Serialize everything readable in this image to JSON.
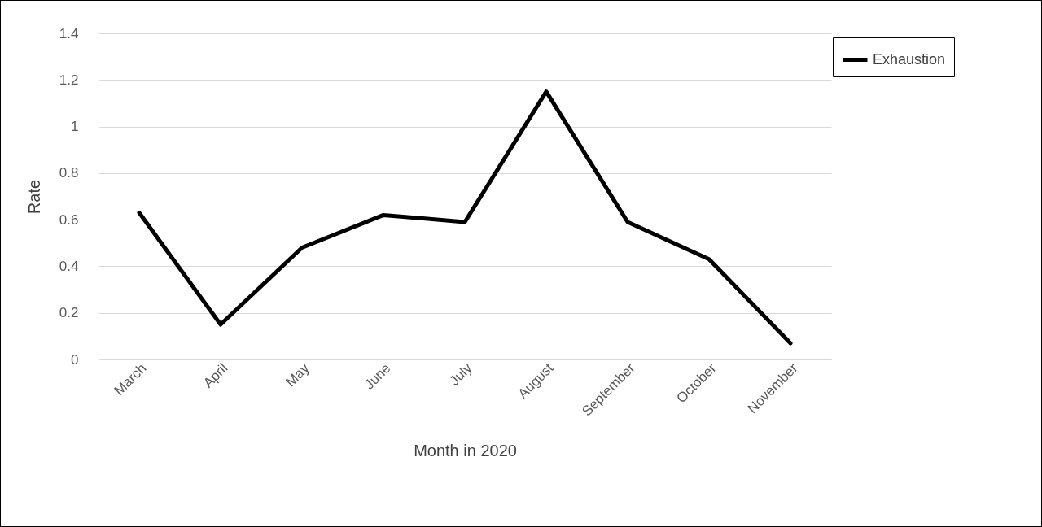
{
  "chart_data": {
    "type": "line",
    "xlabel": "Month in 2020",
    "ylabel": "Rate",
    "categories": [
      "March",
      "April",
      "May",
      "June",
      "July",
      "August",
      "September",
      "October",
      "November"
    ],
    "series": [
      {
        "name": "Exhaustion",
        "color": "#000000",
        "values": [
          0.63,
          0.15,
          0.48,
          0.62,
          0.59,
          1.15,
          0.59,
          0.43,
          0.07
        ]
      }
    ],
    "ylim": [
      0,
      1.4
    ],
    "yticks": [
      0,
      0.2,
      0.4,
      0.6,
      0.8,
      1,
      1.2,
      1.4
    ],
    "grid": "y",
    "legend": "top right"
  }
}
